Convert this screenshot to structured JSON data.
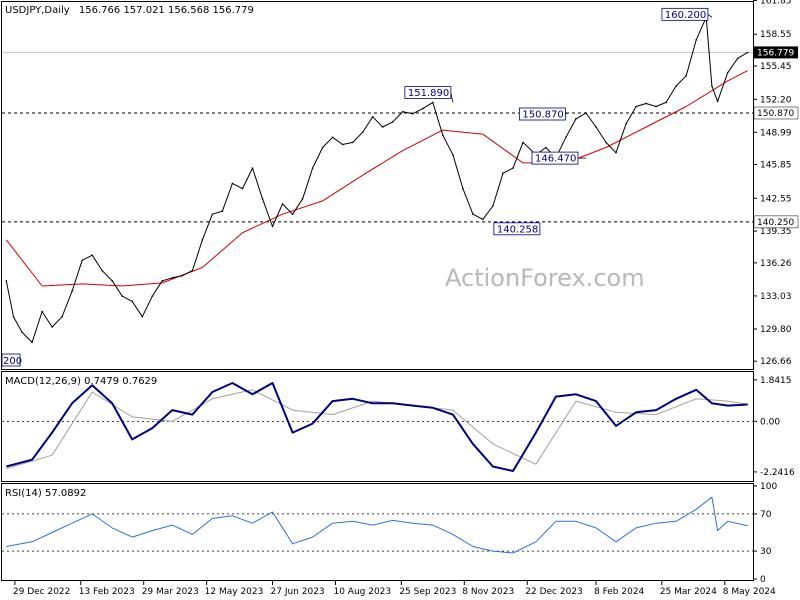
{
  "header": {
    "symbol_label": "USDJPY,Daily",
    "ohlc": "156.766 157.021 156.568 156.779"
  },
  "watermark": "ActionForex.com",
  "colors": {
    "price": "#000000",
    "ma": "#d00000",
    "macd": "#000080",
    "signal": "#a0a0a0",
    "rsi": "#3070d0",
    "grid": "#c8c8c8"
  },
  "chart_data": [
    {
      "type": "line",
      "panel": "price",
      "title": "USDJPY,Daily",
      "ylim": [
        126.0,
        161.5
      ],
      "y_ticks": [
        "161.85",
        "158.55",
        "155.45",
        "152.20",
        "148.99",
        "145.85",
        "142.55",
        "139.35",
        "136.26",
        "133.03",
        "129.80",
        "126.66"
      ],
      "current_price_label": "156.779",
      "current_price": 156.779,
      "reference_levels": [
        {
          "value": 150.87,
          "label": "150.870"
        },
        {
          "value": 140.25,
          "label": "140.250"
        }
      ],
      "annotations": [
        {
          "label": "160.200",
          "value": 160.2,
          "date": "2024-04-29"
        },
        {
          "label": "151.890",
          "value": 151.89,
          "date": "2023-10-31"
        },
        {
          "label": "150.870",
          "value": 150.87,
          "date": "2024-01-19"
        },
        {
          "label": "146.470",
          "value": 146.47,
          "date": "2024-02-01"
        },
        {
          "label": "140.258",
          "value": 140.258,
          "date": "2023-12-28"
        }
      ],
      "clipped_edge_label": "200",
      "series": [
        {
          "x": [
            "2022-12-23",
            "2022-12-28",
            "2023-01-03",
            "2023-01-10",
            "2023-01-17",
            "2023-01-24",
            "2023-01-31",
            "2023-02-07",
            "2023-02-14",
            "2023-02-21",
            "2023-02-28",
            "2023-03-07",
            "2023-03-14",
            "2023-03-21",
            "2023-03-28",
            "2023-04-04",
            "2023-04-11",
            "2023-04-18",
            "2023-04-25",
            "2023-05-02",
            "2023-05-09",
            "2023-05-16",
            "2023-05-23",
            "2023-05-30",
            "2023-06-06",
            "2023-06-13",
            "2023-06-20",
            "2023-06-27",
            "2023-07-04",
            "2023-07-11",
            "2023-07-18",
            "2023-07-25",
            "2023-08-01",
            "2023-08-08",
            "2023-08-15",
            "2023-08-22",
            "2023-08-29",
            "2023-09-05",
            "2023-09-12",
            "2023-09-19",
            "2023-09-26",
            "2023-10-03",
            "2023-10-10",
            "2023-10-17",
            "2023-10-24",
            "2023-10-31",
            "2023-11-07",
            "2023-11-14",
            "2023-11-21",
            "2023-11-28",
            "2023-12-05",
            "2023-12-12",
            "2023-12-19",
            "2023-12-28",
            "2024-01-04",
            "2024-01-11",
            "2024-01-18",
            "2024-01-25",
            "2024-02-01",
            "2024-02-08",
            "2024-02-15",
            "2024-02-22",
            "2024-02-29",
            "2024-03-07",
            "2024-03-14",
            "2024-03-21",
            "2024-03-28",
            "2024-04-04",
            "2024-04-11",
            "2024-04-18",
            "2024-04-25",
            "2024-04-29",
            "2024-05-03",
            "2024-05-10",
            "2024-05-17",
            "2024-05-24"
          ],
          "values": [
            134.5,
            131.0,
            129.5,
            128.5,
            131.5,
            130.0,
            131.0,
            133.5,
            136.5,
            137.0,
            135.5,
            134.5,
            133.0,
            132.5,
            131.0,
            133.0,
            134.5,
            134.8,
            135.0,
            135.5,
            138.5,
            141.0,
            141.3,
            144.0,
            143.5,
            145.5,
            142.5,
            139.8,
            142.0,
            141.0,
            142.5,
            145.5,
            147.5,
            148.5,
            147.8,
            148.0,
            149.0,
            150.5,
            149.5,
            150.0,
            151.0,
            150.8,
            151.3,
            151.9,
            148.7,
            146.8,
            143.5,
            141.0,
            140.5,
            141.8,
            145.0,
            145.5,
            148.0,
            146.8,
            147.5,
            146.5,
            148.5,
            150.3,
            150.87,
            149.5,
            148.0,
            147.0,
            149.8,
            151.5,
            151.8,
            151.5,
            151.9,
            153.5,
            154.5,
            158.0,
            160.2,
            153.5,
            152.0,
            154.8,
            156.2,
            156.779
          ]
        },
        {
          "name": "MA",
          "x": [
            "2022-12-23",
            "2023-01-17",
            "2023-02-14",
            "2023-03-14",
            "2023-04-11",
            "2023-05-09",
            "2023-06-06",
            "2023-07-04",
            "2023-08-01",
            "2023-08-29",
            "2023-09-26",
            "2023-10-24",
            "2023-11-21",
            "2023-12-19",
            "2024-01-18",
            "2024-02-15",
            "2024-03-14",
            "2024-04-11",
            "2024-05-10",
            "2024-05-24"
          ],
          "values": [
            138.5,
            134.0,
            134.2,
            134.0,
            134.3,
            135.8,
            139.2,
            141.0,
            142.3,
            144.8,
            147.2,
            149.2,
            148.8,
            146.0,
            146.0,
            147.5,
            149.5,
            151.5,
            154.0,
            155.0
          ]
        }
      ]
    },
    {
      "type": "line",
      "panel": "macd",
      "title": "MACD(12,26,9) 0.7479 0.7629",
      "ylim": [
        -2.6,
        2.1
      ],
      "y_ticks": [
        "1.8415",
        "0.00",
        "-2.2416"
      ],
      "series": [
        {
          "name": "MACD",
          "x": [
            "2022-12-23",
            "2023-01-10",
            "2023-01-24",
            "2023-02-07",
            "2023-02-21",
            "2023-03-07",
            "2023-03-21",
            "2023-04-04",
            "2023-04-18",
            "2023-05-02",
            "2023-05-16",
            "2023-05-30",
            "2023-06-13",
            "2023-06-27",
            "2023-07-11",
            "2023-07-25",
            "2023-08-08",
            "2023-08-22",
            "2023-09-05",
            "2023-09-19",
            "2023-10-03",
            "2023-10-17",
            "2023-10-31",
            "2023-11-14",
            "2023-11-28",
            "2023-12-12",
            "2023-12-28",
            "2024-01-11",
            "2024-01-25",
            "2024-02-08",
            "2024-02-22",
            "2024-03-07",
            "2024-03-21",
            "2024-04-04",
            "2024-04-18",
            "2024-04-29",
            "2024-05-10",
            "2024-05-24"
          ],
          "values": [
            -2.0,
            -1.7,
            -0.5,
            0.8,
            1.6,
            0.8,
            -0.8,
            -0.3,
            0.5,
            0.3,
            1.3,
            1.7,
            1.2,
            1.7,
            -0.5,
            -0.1,
            0.9,
            1.0,
            0.8,
            0.8,
            0.7,
            0.6,
            0.3,
            -1.0,
            -2.0,
            -2.2,
            -0.5,
            1.1,
            1.2,
            0.9,
            -0.2,
            0.4,
            0.5,
            1.0,
            1.4,
            0.8,
            0.7,
            0.7479
          ]
        },
        {
          "name": "Signal",
          "x": [
            "2022-12-23",
            "2023-01-24",
            "2023-02-21",
            "2023-03-21",
            "2023-04-18",
            "2023-05-16",
            "2023-06-13",
            "2023-07-11",
            "2023-08-08",
            "2023-09-05",
            "2023-10-03",
            "2023-10-31",
            "2023-11-28",
            "2023-12-28",
            "2024-01-25",
            "2024-02-22",
            "2024-03-21",
            "2024-04-18",
            "2024-05-10",
            "2024-05-24"
          ],
          "values": [
            -2.1,
            -1.5,
            1.3,
            0.2,
            0.0,
            1.0,
            1.4,
            0.5,
            0.3,
            0.9,
            0.7,
            0.5,
            -1.0,
            -1.9,
            0.9,
            0.4,
            0.3,
            1.0,
            0.9,
            0.7629
          ]
        }
      ]
    },
    {
      "type": "line",
      "panel": "rsi",
      "title": "RSI(14) 57.0892",
      "ylim": [
        0,
        100
      ],
      "y_ticks": [
        "100",
        "70",
        "30",
        "0"
      ],
      "levels": [
        70,
        30
      ],
      "series": [
        {
          "name": "RSI",
          "x": [
            "2022-12-23",
            "2023-01-10",
            "2023-01-24",
            "2023-02-07",
            "2023-02-21",
            "2023-03-07",
            "2023-03-21",
            "2023-04-04",
            "2023-04-18",
            "2023-05-02",
            "2023-05-16",
            "2023-05-30",
            "2023-06-13",
            "2023-06-27",
            "2023-07-11",
            "2023-07-25",
            "2023-08-08",
            "2023-08-22",
            "2023-09-05",
            "2023-09-19",
            "2023-10-03",
            "2023-10-17",
            "2023-10-31",
            "2023-11-14",
            "2023-11-28",
            "2023-12-12",
            "2023-12-28",
            "2024-01-11",
            "2024-01-25",
            "2024-02-08",
            "2024-02-22",
            "2024-03-07",
            "2024-03-21",
            "2024-04-04",
            "2024-04-18",
            "2024-04-29",
            "2024-05-03",
            "2024-05-10",
            "2024-05-24"
          ],
          "values": [
            35,
            40,
            50,
            60,
            70,
            55,
            45,
            52,
            58,
            48,
            65,
            68,
            60,
            72,
            38,
            45,
            60,
            62,
            58,
            63,
            60,
            58,
            48,
            35,
            30,
            28,
            40,
            62,
            62,
            55,
            40,
            55,
            60,
            62,
            75,
            88,
            52,
            62,
            57.0892
          ]
        }
      ]
    }
  ],
  "x_axis": {
    "tick_labels": [
      "29 Dec 2022",
      "13 Feb 2023",
      "29 Mar 2023",
      "12 May 2023",
      "27 Jun 2023",
      "10 Aug 2023",
      "25 Sep 2023",
      "8 Nov 2023",
      "22 Dec 2023",
      "8 Feb 2024",
      "25 Mar 2024",
      "8 May 2024"
    ],
    "tick_dates": [
      "2022-12-29",
      "2023-02-13",
      "2023-03-29",
      "2023-05-12",
      "2023-06-27",
      "2023-08-10",
      "2023-09-25",
      "2023-11-08",
      "2023-12-22",
      "2024-02-08",
      "2024-03-25",
      "2024-05-08"
    ]
  }
}
